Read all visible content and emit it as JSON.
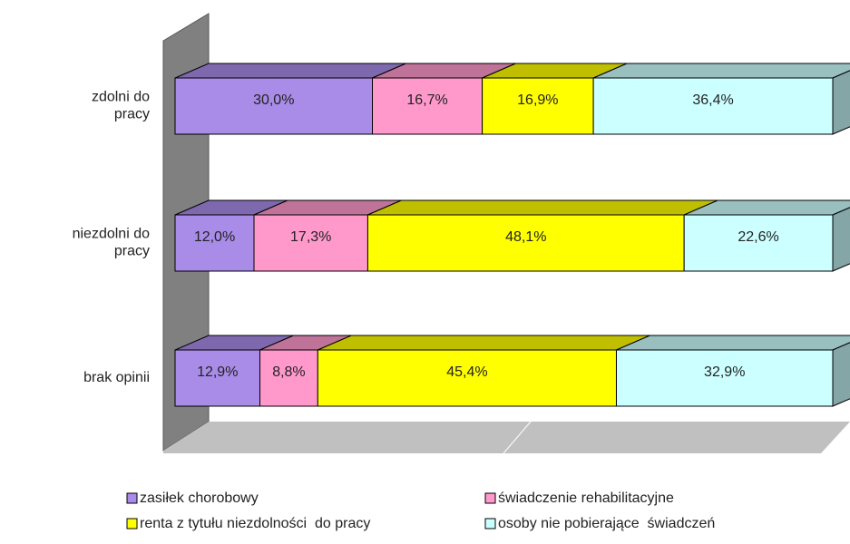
{
  "chart_data": {
    "type": "bar3d_stacked_horizontal",
    "categories": [
      "zdolni do pracy",
      "niezdolni do pracy",
      "brak opinii"
    ],
    "series": [
      {
        "name": "zasiłek chorobowy",
        "color": "#a98ce8",
        "values": [
          30.0,
          12.0,
          12.9
        ],
        "value_labels": [
          "30,0%",
          "12,0%",
          "12,9%"
        ]
      },
      {
        "name": "świadczenie rehabilitacyjne",
        "color": "#ff99cc",
        "values": [
          16.7,
          17.3,
          8.8
        ],
        "value_labels": [
          "16,7%",
          "17,3%",
          "8,8%"
        ]
      },
      {
        "name": "renta z tytułu niezdolności  do pracy",
        "color": "#ffff00",
        "values": [
          16.9,
          48.1,
          45.4
        ],
        "value_labels": [
          "16,9%",
          "48,1%",
          "45,4%"
        ]
      },
      {
        "name": "osoby nie pobierające  świadczeń",
        "color": "#ccffff",
        "values": [
          36.4,
          22.6,
          32.9
        ],
        "value_labels": [
          "36,4%",
          "22,6%",
          "32,9%"
        ]
      }
    ],
    "legend": "bottom"
  }
}
